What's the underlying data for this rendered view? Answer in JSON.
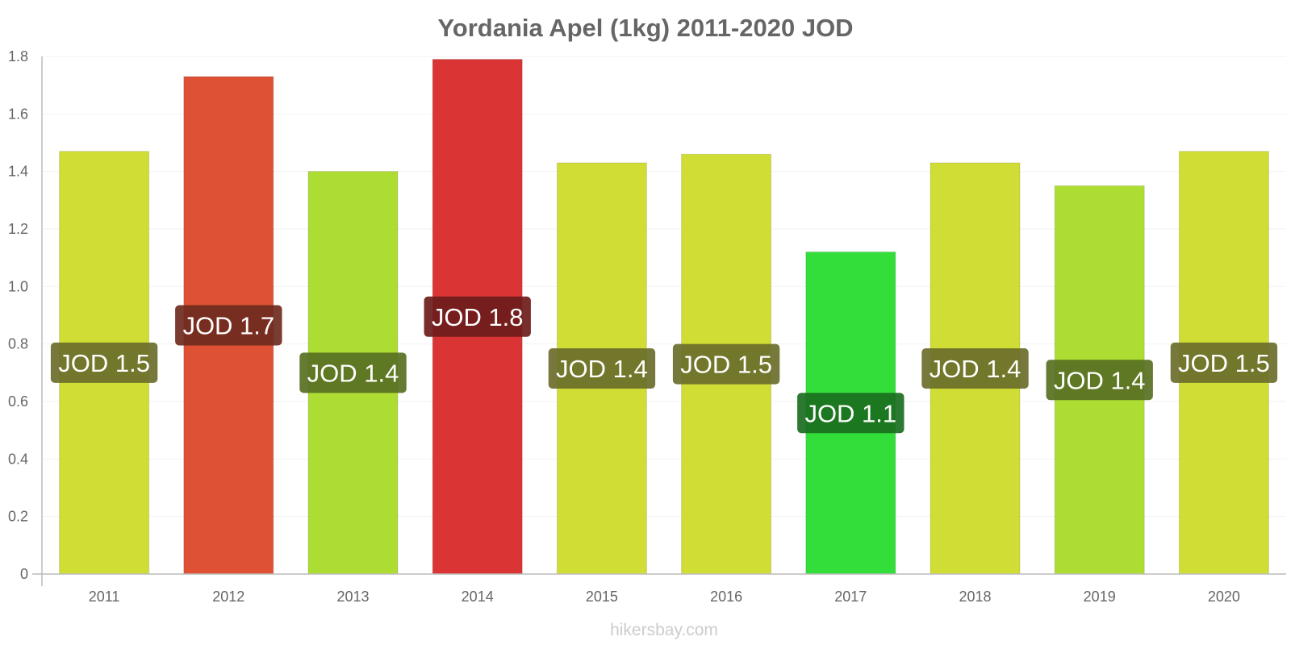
{
  "chart_data": {
    "type": "bar",
    "title": "Yordania Apel (1kg) 2011-2020 JOD",
    "categories": [
      "2011",
      "2012",
      "2013",
      "2014",
      "2015",
      "2016",
      "2017",
      "2018",
      "2019",
      "2020"
    ],
    "values": [
      1.47,
      1.73,
      1.4,
      1.79,
      1.43,
      1.46,
      1.12,
      1.43,
      1.35,
      1.47
    ],
    "data_labels": [
      "JOD 1.5",
      "JOD 1.7",
      "JOD 1.4",
      "JOD 1.8",
      "JOD 1.4",
      "JOD 1.5",
      "JOD 1.1",
      "JOD 1.4",
      "JOD 1.4",
      "JOD 1.5"
    ],
    "bar_colors": [
      "#d0dd35",
      "#de5134",
      "#addd33",
      "#da3434",
      "#d0dd35",
      "#d0dd35",
      "#33dd3a",
      "#d0dd35",
      "#addd33",
      "#d0dd35"
    ],
    "label_bg_colors": [
      "#6a6e2a",
      "#6f2a20",
      "#586f22",
      "#6e1c1c",
      "#6a6e2a",
      "#6a6e2a",
      "#1a6e1f",
      "#6a6e2a",
      "#586f22",
      "#6a6e2a"
    ],
    "yticks": [
      "0",
      "0.2",
      "0.4",
      "0.6",
      "0.8",
      "1.0",
      "1.2",
      "1.4",
      "1.6",
      "1.8"
    ],
    "ylim": [
      0,
      1.8
    ],
    "xlabel": "",
    "ylabel": "",
    "grid": true,
    "legend": "none"
  },
  "watermark": "hikersbay.com"
}
